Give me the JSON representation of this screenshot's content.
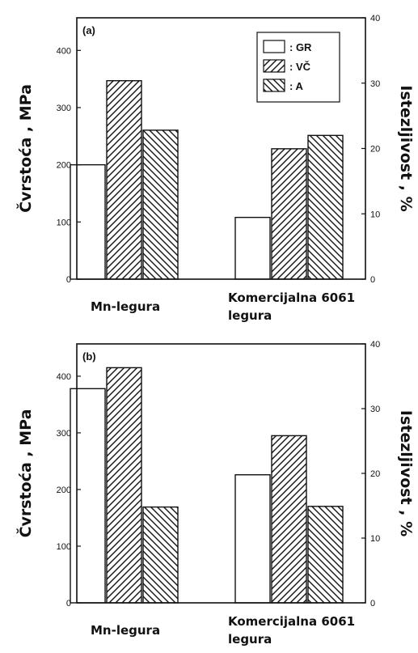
{
  "legend": {
    "items": [
      {
        "key": "GR",
        "label": ": GR",
        "pattern": "none"
      },
      {
        "key": "VC",
        "label": ": VČ",
        "pattern": "forward"
      },
      {
        "key": "A",
        "label": ": A",
        "pattern": "back"
      }
    ]
  },
  "chart_data": [
    {
      "type": "bar",
      "panel_label": "(a)",
      "categories": [
        "Mn-legura",
        "Komercijalna 6061 legura"
      ],
      "category_lines": [
        [
          "Mn-legura"
        ],
        [
          "Komercijalna 6061",
          "legura"
        ]
      ],
      "ylabel": "Čvrstoća , MPa",
      "ylabel_right": "Istezljivost , %",
      "ylim": [
        0,
        457
      ],
      "ylim_right": [
        0,
        40
      ],
      "yticks": [
        0,
        100,
        200,
        300,
        400
      ],
      "yticks_right": [
        0,
        10,
        20,
        30,
        40
      ],
      "series": [
        {
          "name": "GR",
          "axis": "left",
          "values": [
            200,
            108
          ]
        },
        {
          "name": "VČ",
          "axis": "left",
          "values": [
            347,
            228
          ]
        },
        {
          "name": "A",
          "axis": "right",
          "values": [
            22.8,
            22.0
          ]
        }
      ],
      "legend_position": "top-right",
      "grid": false
    },
    {
      "type": "bar",
      "panel_label": "(b)",
      "categories": [
        "Mn-legura",
        "Komercijalna 6061 legura"
      ],
      "category_lines": [
        [
          "Mn-legura"
        ],
        [
          "Komercijalna 6061",
          "legura"
        ]
      ],
      "ylabel": "Čvrstoća , MPa",
      "ylabel_right": "Istezljivost , %",
      "ylim": [
        0,
        457
      ],
      "ylim_right": [
        0,
        40
      ],
      "yticks": [
        0,
        100,
        200,
        300,
        400
      ],
      "yticks_right": [
        0,
        10,
        20,
        30,
        40
      ],
      "series": [
        {
          "name": "GR",
          "axis": "left",
          "values": [
            378,
            226
          ]
        },
        {
          "name": "VČ",
          "axis": "left",
          "values": [
            415,
            295
          ]
        },
        {
          "name": "A",
          "axis": "right",
          "values": [
            14.8,
            14.9
          ]
        }
      ],
      "grid": false
    }
  ]
}
